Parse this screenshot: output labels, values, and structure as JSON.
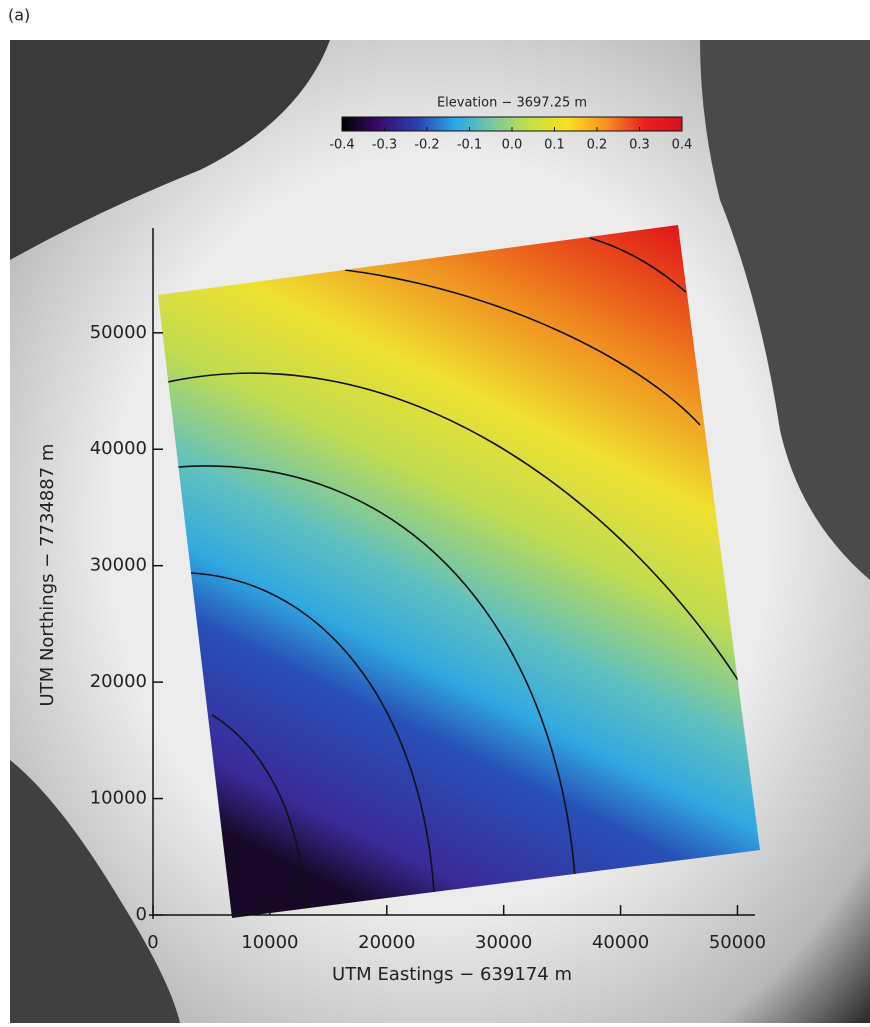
{
  "panel_label": "(a)",
  "chart_data": {
    "type": "map",
    "x_label": "UTM Eastings − 639174 m",
    "y_label": "UTM Northings − 7734887 m",
    "xlim": [
      0,
      51500
    ],
    "ylim": [
      0,
      59000
    ],
    "xticks": [
      0,
      10000,
      20000,
      30000,
      40000,
      50000
    ],
    "yticks": [
      0,
      10000,
      20000,
      30000,
      40000,
      50000
    ],
    "colorbar": {
      "title": "Elevation − 3697.25 m",
      "lim": [
        -0.4,
        0.4
      ],
      "ticks": [
        -0.4,
        -0.3,
        -0.2,
        -0.1,
        {
          "value": 0,
          "label": "0.0"
        },
        0.1,
        0.2,
        0.3,
        0.4
      ],
      "colors": [
        "#000000",
        "#3a0a6e",
        "#2a40b0",
        "#2aa8e8",
        "#7cc8a0",
        "#c8e040",
        "#f8e020",
        "#f89020",
        "#e82020",
        "#d81020"
      ]
    }
  }
}
